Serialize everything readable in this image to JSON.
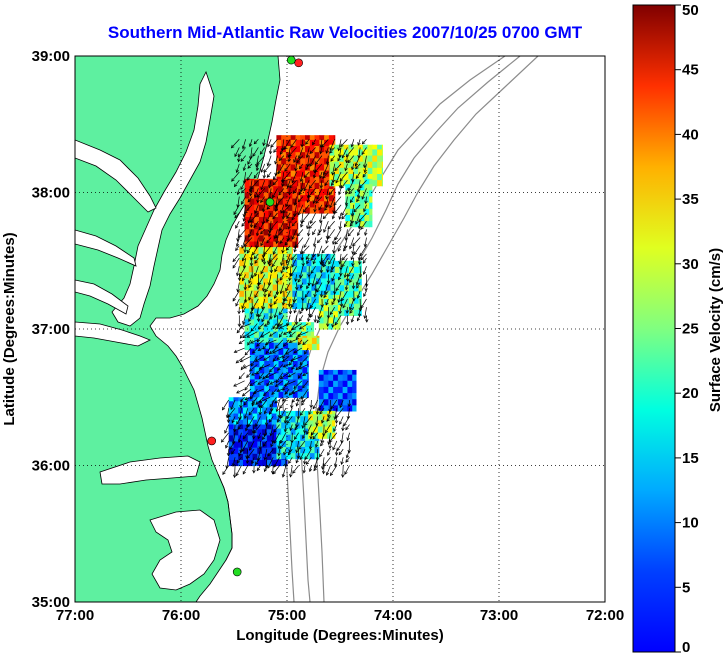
{
  "chart_data": {
    "type": "vector_field_map",
    "title": "Southern Mid-Atlantic Raw Velocities 2007/10/25 0700 GMT",
    "xlabel": "Longitude (Degrees:Minutes)",
    "ylabel": "Latitude (Degrees:Minutes)",
    "x_range": [
      -77,
      -72
    ],
    "y_range": [
      35,
      39
    ],
    "x_ticks": [
      -77,
      -76,
      -75,
      -74,
      -73,
      -72
    ],
    "x_tick_labels": [
      "77:00",
      "76:00",
      "75:00",
      "74:00",
      "73:00",
      "72:00"
    ],
    "y_ticks": [
      35,
      36,
      37,
      38,
      39
    ],
    "y_tick_labels": [
      "35:00",
      "36:00",
      "37:00",
      "38:00",
      "39:00"
    ],
    "grid": "dotted",
    "colorbar": {
      "label": "Surface Velocity (cm/s)",
      "range": [
        0,
        50
      ],
      "ticks": [
        0,
        5,
        10,
        15,
        20,
        25,
        30,
        35,
        40,
        45,
        50
      ],
      "colormap": "jet"
    },
    "colors": {
      "land": "#5ef0a0",
      "bathymetry": "#8c8c8c",
      "station_red": "#ff2020",
      "station_green": "#22dd22",
      "title": "#0000ff"
    },
    "stations": [
      {
        "lon": -74.89,
        "lat": 38.95,
        "color": "red"
      },
      {
        "lon": -74.96,
        "lat": 38.97,
        "color": "green"
      },
      {
        "lon": -75.16,
        "lat": 37.93,
        "color": "green"
      },
      {
        "lon": -75.71,
        "lat": 36.18,
        "color": "red"
      },
      {
        "lon": -75.47,
        "lat": 35.22,
        "color": "green"
      }
    ],
    "velocity_regions": [
      {
        "lon_min": -75.1,
        "lon_max": -74.55,
        "lat_min": 37.85,
        "lat_max": 38.42,
        "speed": 42
      },
      {
        "lon_min": -75.4,
        "lon_max": -74.9,
        "lat_min": 37.6,
        "lat_max": 38.1,
        "speed": 44
      },
      {
        "lon_min": -74.6,
        "lon_max": -74.1,
        "lat_min": 38.05,
        "lat_max": 38.35,
        "speed": 28
      },
      {
        "lon_min": -74.45,
        "lon_max": -74.2,
        "lat_min": 37.75,
        "lat_max": 38.1,
        "speed": 24
      },
      {
        "lon_min": -75.45,
        "lon_max": -74.95,
        "lat_min": 37.15,
        "lat_max": 37.6,
        "speed": 30
      },
      {
        "lon_min": -74.95,
        "lon_max": -74.55,
        "lat_min": 37.15,
        "lat_max": 37.55,
        "speed": 18
      },
      {
        "lon_min": -74.55,
        "lon_max": -74.3,
        "lat_min": 37.1,
        "lat_max": 37.5,
        "speed": 22
      },
      {
        "lon_min": -74.7,
        "lon_max": -74.5,
        "lat_min": 37.0,
        "lat_max": 37.25,
        "speed": 26
      },
      {
        "lon_min": -75.4,
        "lon_max": -75.0,
        "lat_min": 36.85,
        "lat_max": 37.15,
        "speed": 20
      },
      {
        "lon_min": -75.0,
        "lon_max": -74.75,
        "lat_min": 36.85,
        "lat_max": 37.05,
        "speed": 24
      },
      {
        "lon_min": -75.35,
        "lon_max": -74.8,
        "lat_min": 36.5,
        "lat_max": 36.9,
        "speed": 12
      },
      {
        "lon_min": -74.9,
        "lon_max": -74.7,
        "lat_min": 36.85,
        "lat_max": 36.95,
        "speed": 30
      },
      {
        "lon_min": -74.7,
        "lon_max": -74.35,
        "lat_min": 36.4,
        "lat_max": 36.7,
        "speed": 10
      },
      {
        "lon_min": -75.55,
        "lon_max": -75.1,
        "lat_min": 36.25,
        "lat_max": 36.5,
        "speed": 14
      },
      {
        "lon_min": -75.55,
        "lon_max": -75.0,
        "lat_min": 36.0,
        "lat_max": 36.3,
        "speed": 7
      },
      {
        "lon_min": -75.1,
        "lon_max": -74.7,
        "lat_min": 36.05,
        "lat_max": 36.4,
        "speed": 18
      },
      {
        "lon_min": -74.8,
        "lon_max": -74.55,
        "lat_min": 36.2,
        "lat_max": 36.4,
        "speed": 28
      }
    ],
    "vector_regions": [
      {
        "lon_min": -75.45,
        "lon_max": -74.2,
        "lat_min": 37.55,
        "lat_max": 38.45,
        "direction_deg": 205
      },
      {
        "lon_min": -75.45,
        "lon_max": -74.2,
        "lat_min": 37.1,
        "lat_max": 37.55,
        "direction_deg": 195
      },
      {
        "lon_min": -75.4,
        "lon_max": -74.75,
        "lat_min": 36.5,
        "lat_max": 37.1,
        "direction_deg": 230
      },
      {
        "lon_min": -75.55,
        "lon_max": -74.35,
        "lat_min": 36.0,
        "lat_max": 36.5,
        "direction_deg": 200
      }
    ]
  }
}
